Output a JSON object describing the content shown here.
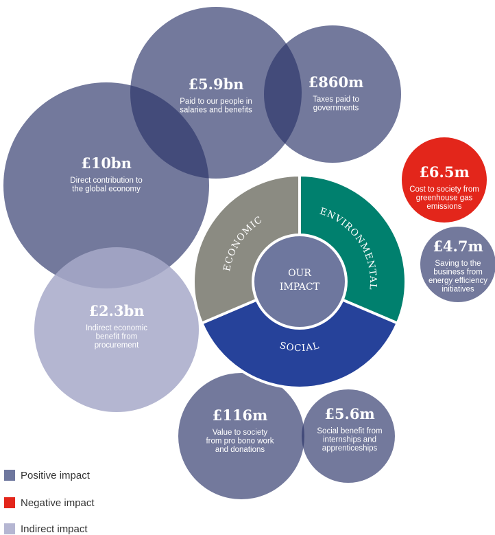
{
  "bubbles": [
    {
      "value": "£5.9bn",
      "description": [
        "Paid to our people in",
        "salaries and benefits"
      ]
    },
    {
      "value": "£860m",
      "description": [
        "Taxes paid to",
        "governments"
      ]
    },
    {
      "value": "£10bn",
      "description": [
        "Direct contribution to",
        "the global economy"
      ]
    },
    {
      "value": "£2.3bn",
      "description": [
        "Indirect economic",
        "benefit from",
        "procurement"
      ]
    },
    {
      "value": "£6.5m",
      "description": [
        "Cost to society from",
        "greenhouse gas",
        "emissions"
      ]
    },
    {
      "value": "£4.7m",
      "description": [
        "Saving to the",
        "business from",
        "energy efficiency",
        "initiatives"
      ]
    },
    {
      "value": "£116m",
      "description": [
        "Value to society",
        "from pro bono work",
        "and donations"
      ]
    },
    {
      "value": "£5.6m",
      "description": [
        "Social benefit from",
        "internships and",
        "apprenticeships"
      ]
    }
  ],
  "wheel": {
    "center": [
      "OUR",
      "IMPACT"
    ],
    "segments": [
      "ENVIRONMENTAL",
      "SOCIAL",
      "ECONOMIC"
    ]
  },
  "legend": [
    "Positive impact",
    "Negative impact",
    "Indirect impact"
  ]
}
